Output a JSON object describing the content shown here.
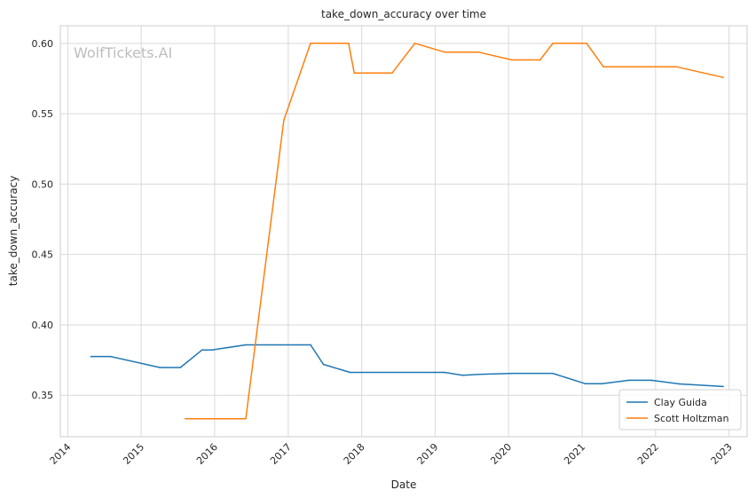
{
  "chart_data": {
    "type": "line",
    "title": "take_down_accuracy over time",
    "xlabel": "Date",
    "ylabel": "take_down_accuracy",
    "watermark": "WolfTickets.AI",
    "grid": true,
    "legend_position": "lower-right",
    "xlim": [
      "2013-11-25",
      "2023-04-01"
    ],
    "ylim": [
      0.3205,
      0.6125
    ],
    "x_ticks": [
      "2014-01-01",
      "2015-01-01",
      "2016-01-01",
      "2017-01-01",
      "2018-01-01",
      "2019-01-01",
      "2020-01-01",
      "2021-01-01",
      "2022-01-01",
      "2023-01-01"
    ],
    "x_tick_labels": [
      "2014",
      "2015",
      "2016",
      "2017",
      "2018",
      "2019",
      "2020",
      "2021",
      "2022",
      "2023"
    ],
    "y_ticks": [
      0.35,
      0.4,
      0.45,
      0.5,
      0.55,
      0.6
    ],
    "y_tick_labels": [
      "0.35",
      "0.40",
      "0.45",
      "0.50",
      "0.55",
      "0.60"
    ],
    "series": [
      {
        "name": "Clay Guida",
        "color": "#1f77b4",
        "points": [
          [
            "2014-04-26",
            0.3775
          ],
          [
            "2014-08-02",
            0.3775
          ],
          [
            "2015-04-04",
            0.3697
          ],
          [
            "2015-07-15",
            0.3697
          ],
          [
            "2015-10-31",
            0.3822
          ],
          [
            "2015-12-19",
            0.3822
          ],
          [
            "2016-06-04",
            0.3858
          ],
          [
            "2017-04-22",
            0.3858
          ],
          [
            "2017-06-25",
            0.3719
          ],
          [
            "2017-11-04",
            0.3662
          ],
          [
            "2019-02-17",
            0.3662
          ],
          [
            "2019-05-18",
            0.3642
          ],
          [
            "2019-08-03",
            0.3648
          ],
          [
            "2020-01-18",
            0.3655
          ],
          [
            "2020-08-08",
            0.3655
          ],
          [
            "2021-01-16",
            0.3582
          ],
          [
            "2021-04-10",
            0.3582
          ],
          [
            "2021-08-21",
            0.3606
          ],
          [
            "2021-12-11",
            0.3606
          ],
          [
            "2022-04-30",
            0.358
          ],
          [
            "2022-12-03",
            0.3562
          ]
        ]
      },
      {
        "name": "Scott Holtzman",
        "color": "#ff7f0e",
        "points": [
          [
            "2015-08-08",
            0.3333
          ],
          [
            "2016-06-04",
            0.3333
          ],
          [
            "2016-12-10",
            0.5455
          ],
          [
            "2017-04-22",
            0.6
          ],
          [
            "2017-10-28",
            0.6
          ],
          [
            "2017-11-25",
            0.5789
          ],
          [
            "2018-06-01",
            0.5789
          ],
          [
            "2018-09-22",
            0.6
          ],
          [
            "2019-02-17",
            0.5938
          ],
          [
            "2019-08-03",
            0.5938
          ],
          [
            "2020-01-18",
            0.5882
          ],
          [
            "2020-06-06",
            0.5882
          ],
          [
            "2020-08-08",
            0.6
          ],
          [
            "2021-01-23",
            0.6
          ],
          [
            "2021-04-17",
            0.5833
          ],
          [
            "2022-04-16",
            0.5833
          ],
          [
            "2022-12-03",
            0.5758
          ]
        ]
      }
    ]
  }
}
